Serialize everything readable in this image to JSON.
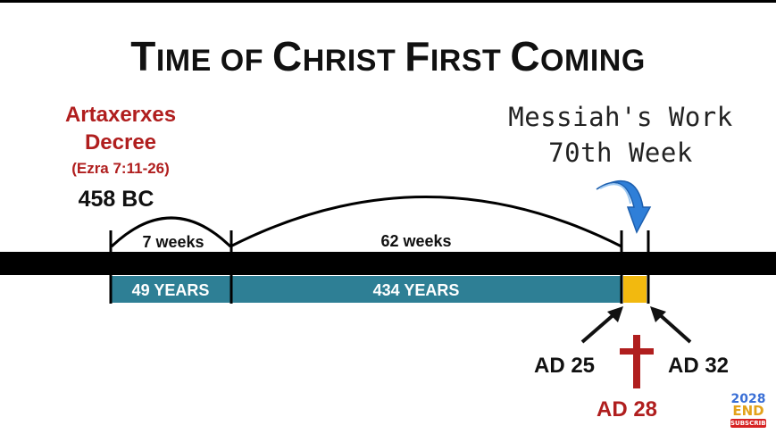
{
  "title": {
    "words": [
      {
        "first": "T",
        "rest": "IME"
      },
      {
        "first": "",
        "rest": "OF"
      },
      {
        "first": "C",
        "rest": "HRIST"
      },
      {
        "first": "F",
        "rest": "IRST"
      },
      {
        "first": "C",
        "rest": "OMING"
      }
    ]
  },
  "decree": {
    "line1": "Artaxerxes",
    "line2": "Decree",
    "reference": "(Ezra 7:11-26)",
    "year": "458 BC"
  },
  "messiah": {
    "line1": "Messiah's Work",
    "line2": "70th Week"
  },
  "timeline": {
    "spans": [
      {
        "arc_label": "7 weeks",
        "bar_label": "49 YEARS"
      },
      {
        "arc_label": "62 weeks",
        "bar_label": "434 YEARS"
      }
    ],
    "final_week": {
      "start_label": "AD 25",
      "end_label": "AD 32",
      "crucifixion_label": "AD 28"
    }
  },
  "badge": {
    "year": "2028",
    "word": "END",
    "subscribe": "SUBSCRIBE"
  },
  "colors": {
    "accent_red": "#b01e1e",
    "bar_teal": "#2e7f95",
    "week_gold": "#f2b90f",
    "arrow_blue": "#2f7fd8",
    "timeline_black": "#000000"
  }
}
